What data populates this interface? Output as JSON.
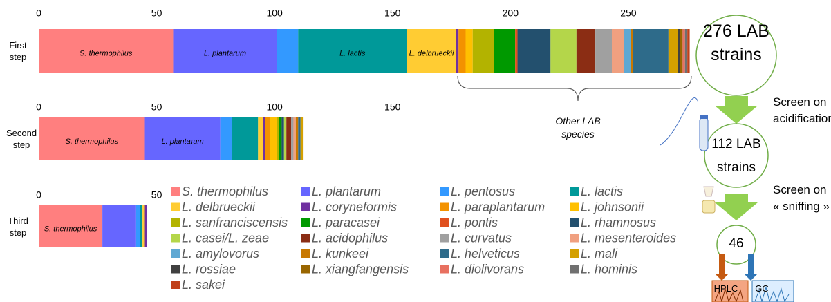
{
  "chart_data": {
    "type": "bar",
    "orientation": "horizontal",
    "stacked": true,
    "categories": [
      "First step",
      "Second step",
      "Third step"
    ],
    "xlim": [
      0,
      277
    ],
    "xticks": [
      [
        0,
        50,
        100,
        150,
        200,
        250
      ],
      [
        0,
        50,
        100,
        150
      ],
      [
        0,
        50
      ]
    ],
    "series": [
      {
        "name": "S. thermophilus",
        "color": "#ff7f7f",
        "values": [
          57,
          45,
          27
        ]
      },
      {
        "name": "L. plantarum",
        "color": "#6666ff",
        "values": [
          44,
          32,
          14
        ]
      },
      {
        "name": "L. pentosus",
        "color": "#3399ff",
        "values": [
          9,
          5,
          2
        ]
      },
      {
        "name": "L. lactis",
        "color": "#009999",
        "values": [
          46,
          11,
          1
        ]
      },
      {
        "name": "L. delbrueckii",
        "color": "#ffcc33",
        "values": [
          21,
          2,
          1
        ]
      },
      {
        "name": "L. coryneformis",
        "color": "#7030a0",
        "values": [
          1,
          1,
          1
        ]
      },
      {
        "name": "L. paraplantarum",
        "color": "#f39200",
        "values": [
          3,
          2,
          0
        ]
      },
      {
        "name": "L. johnsonii",
        "color": "#ffc000",
        "values": [
          3,
          3,
          0
        ]
      },
      {
        "name": "L. sanfranciscensis",
        "color": "#b3b300",
        "values": [
          9,
          1,
          0
        ]
      },
      {
        "name": "L. paracasei",
        "color": "#009900",
        "values": [
          9,
          1,
          0
        ]
      },
      {
        "name": "L. pontis",
        "color": "#e0501e",
        "values": [
          1,
          0,
          0
        ]
      },
      {
        "name": "L. rhamnosus",
        "color": "#23506e",
        "values": [
          14,
          1,
          0
        ]
      },
      {
        "name": "L. casei/L. zeae",
        "color": "#b4d64a",
        "values": [
          11,
          1,
          0
        ]
      },
      {
        "name": "L. acidophilus",
        "color": "#8b2d14",
        "values": [
          8,
          2,
          0
        ]
      },
      {
        "name": "L. curvatus",
        "color": "#a0a0a0",
        "values": [
          7,
          1,
          0
        ]
      },
      {
        "name": "L. mesenteroides",
        "color": "#f0a080",
        "values": [
          5,
          1,
          0
        ]
      },
      {
        "name": "L. amylovorus",
        "color": "#5fa8d3",
        "values": [
          3,
          0,
          0
        ]
      },
      {
        "name": "L. kunkeei",
        "color": "#c87800",
        "values": [
          1,
          1,
          0
        ]
      },
      {
        "name": "L. helveticus",
        "color": "#2e6b8a",
        "values": [
          15,
          1,
          0
        ]
      },
      {
        "name": "L. mali",
        "color": "#d4a000",
        "values": [
          4,
          1,
          0
        ]
      },
      {
        "name": "L. rossiae",
        "color": "#404040",
        "values": [
          1,
          0,
          0
        ]
      },
      {
        "name": "L. xiangfangensis",
        "color": "#996600",
        "values": [
          1,
          0,
          0
        ]
      },
      {
        "name": "L. diolivorans",
        "color": "#e87060",
        "values": [
          1,
          0,
          0
        ]
      },
      {
        "name": "L. hominis",
        "color": "#707070",
        "values": [
          1,
          0,
          0
        ]
      },
      {
        "name": "L. sakei",
        "color": "#c0401a",
        "values": [
          1,
          0,
          0
        ]
      }
    ],
    "annotation": "Other LAB species"
  },
  "flow": {
    "steps": [
      "276 LAB strains",
      "112 LAB strains",
      "46"
    ],
    "screens": [
      "Screen on acidification",
      "Screen on « sniffing »"
    ],
    "methods": [
      "HPLC",
      "GC"
    ]
  }
}
